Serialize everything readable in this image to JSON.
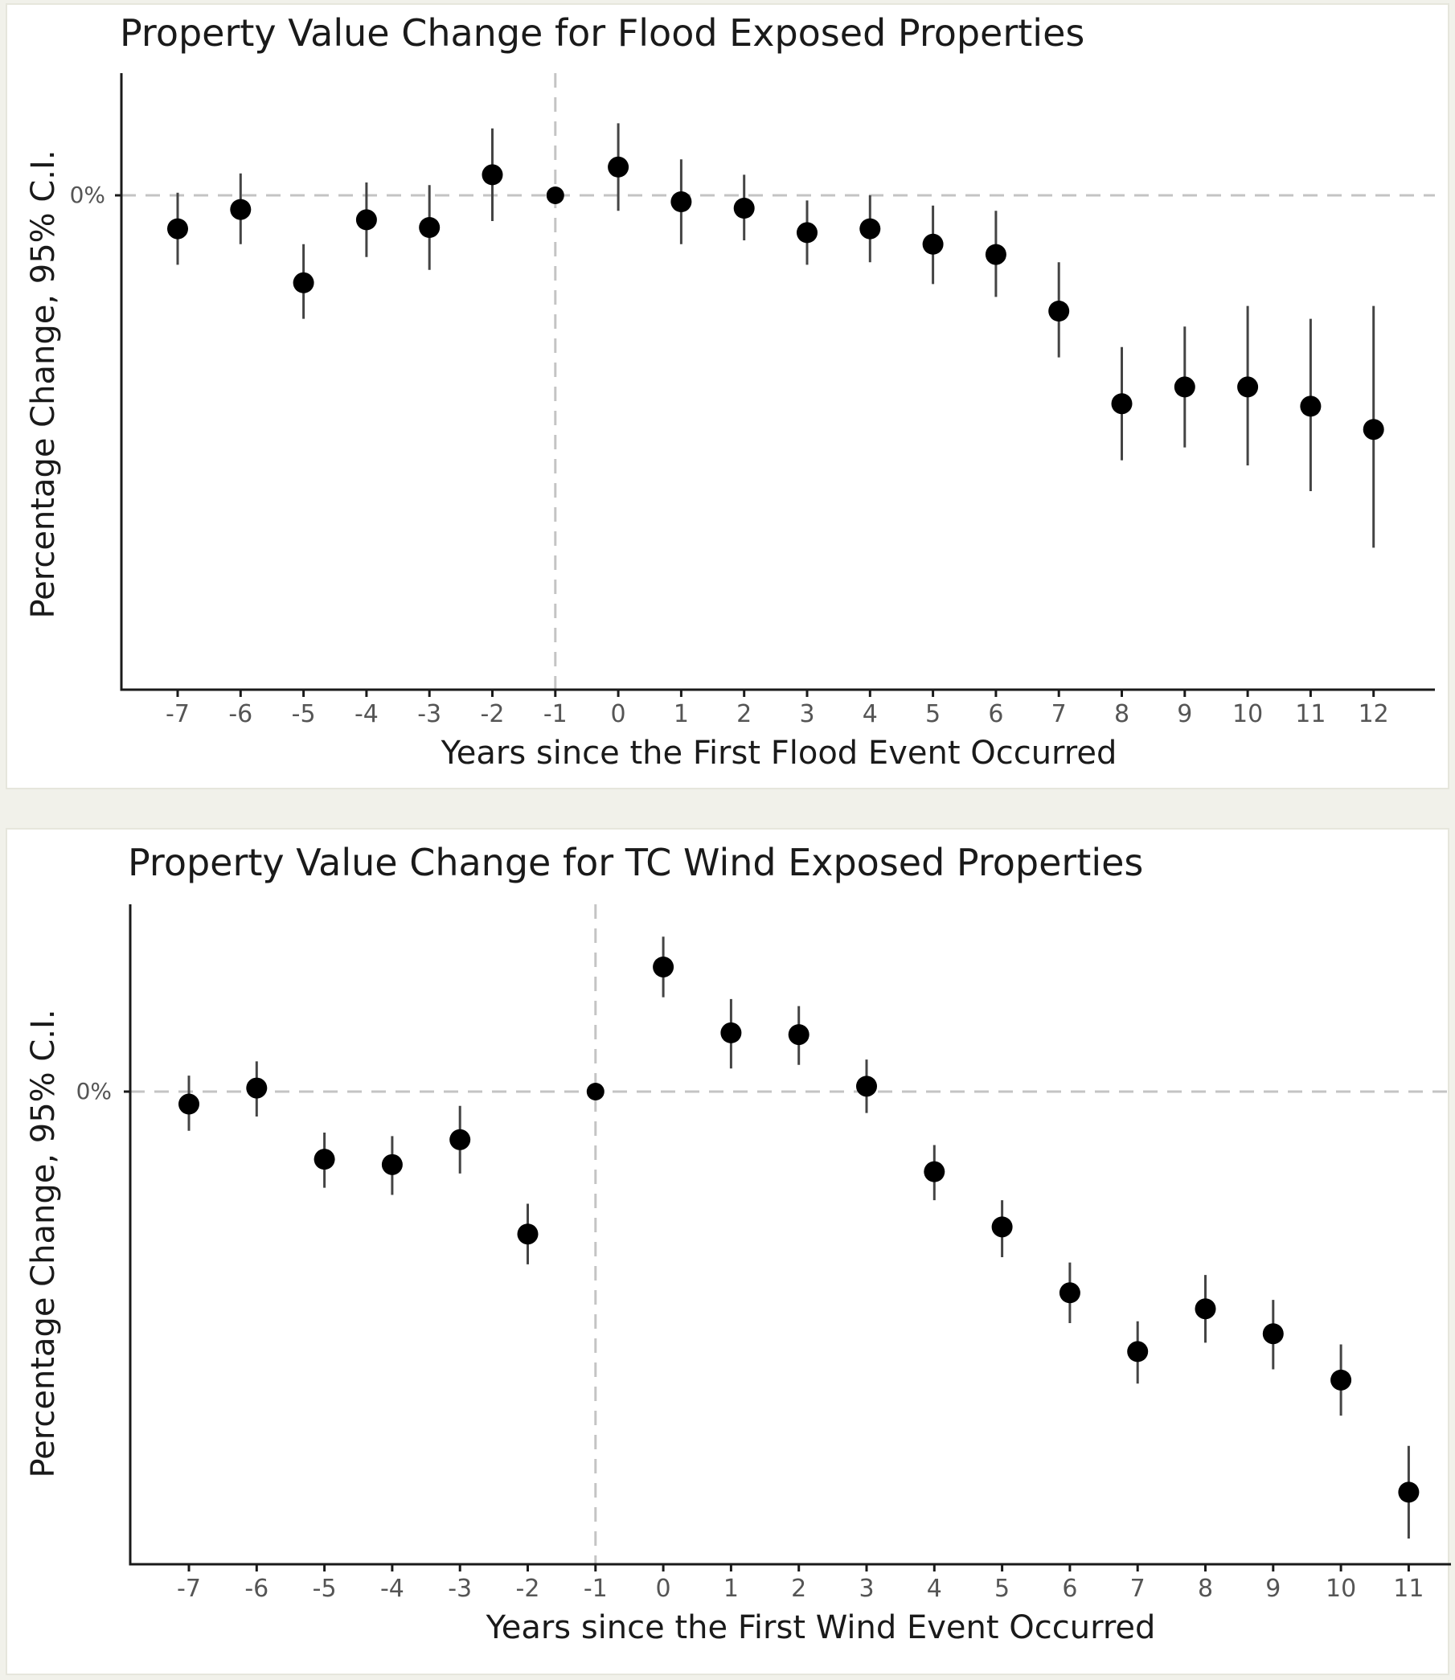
{
  "chart_data": [
    {
      "type": "scatter",
      "title": "Property Value Change for Flood Exposed Properties",
      "xlabel": "Years since the First Flood Event Occurred",
      "ylabel": "Percentage Change, 95% C.I.",
      "ytick_labels": [
        "0%"
      ],
      "reference_x": -1,
      "reference_y": 0,
      "ylim": [
        -1.45,
        0.38
      ],
      "x": [
        -7,
        -6,
        -5,
        -4,
        -3,
        -2,
        -1,
        0,
        1,
        2,
        3,
        4,
        5,
        6,
        7,
        8,
        9,
        10,
        11,
        12
      ],
      "estimate": [
        -0.13,
        -0.055,
        -0.34,
        -0.095,
        -0.125,
        0.08,
        0,
        0.11,
        -0.025,
        -0.05,
        -0.145,
        -0.13,
        -0.19,
        -0.23,
        -0.45,
        -0.81,
        -0.745,
        -0.745,
        -0.82,
        -0.91
      ],
      "ci_low": [
        -0.27,
        -0.19,
        -0.48,
        -0.24,
        -0.29,
        -0.1,
        0,
        -0.06,
        -0.19,
        -0.175,
        -0.27,
        -0.26,
        -0.345,
        -0.395,
        -0.63,
        -1.03,
        -0.98,
        -1.05,
        -1.15,
        -1.37
      ],
      "ci_high": [
        0.01,
        0.085,
        -0.19,
        0.05,
        0.04,
        0.26,
        0,
        0.28,
        0.14,
        0.08,
        -0.02,
        0.0,
        -0.04,
        -0.06,
        -0.26,
        -0.59,
        -0.51,
        -0.43,
        -0.48,
        -0.43
      ]
    },
    {
      "type": "scatter",
      "title": "Property Value Change for TC Wind Exposed Properties",
      "xlabel": "Years since the First Wind Event Occurred",
      "ylabel": "Percentage Change, 95% C.I.",
      "ytick_labels": [
        "0%"
      ],
      "reference_x": -1,
      "reference_y": 0,
      "ylim": [
        -1.35,
        0.5
      ],
      "x": [
        -7,
        -6,
        -5,
        -4,
        -3,
        -2,
        -1,
        0,
        1,
        2,
        3,
        4,
        5,
        6,
        7,
        8,
        9,
        10,
        11
      ],
      "estimate": [
        -0.035,
        0.01,
        -0.19,
        -0.205,
        -0.135,
        -0.4,
        0,
        0.35,
        0.165,
        0.16,
        0.015,
        -0.225,
        -0.38,
        -0.565,
        -0.73,
        -0.61,
        -0.68,
        -0.81,
        -1.125
      ],
      "ci_low": [
        -0.11,
        -0.07,
        -0.27,
        -0.29,
        -0.23,
        -0.485,
        0,
        0.265,
        0.065,
        0.075,
        -0.06,
        -0.305,
        -0.465,
        -0.65,
        -0.82,
        -0.705,
        -0.78,
        -0.91,
        -1.255
      ],
      "ci_high": [
        0.045,
        0.085,
        -0.115,
        -0.125,
        -0.04,
        -0.315,
        0,
        0.435,
        0.26,
        0.24,
        0.09,
        -0.15,
        -0.305,
        -0.48,
        -0.645,
        -0.515,
        -0.585,
        -0.71,
        -0.995
      ]
    }
  ]
}
